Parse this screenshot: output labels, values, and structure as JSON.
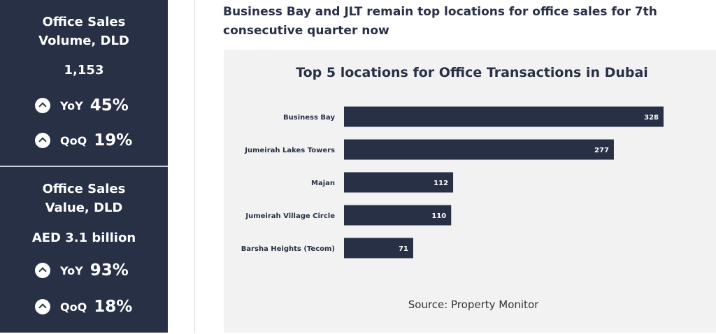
{
  "stats": [
    {
      "title_line1": "Office Sales",
      "title_line2": "Volume, DLD",
      "value": "1,153",
      "yoy_label": "YoY",
      "yoy_value": "45%",
      "qoq_label": "QoQ",
      "qoq_value": "19%",
      "icon": "chevron-up-circle-icon"
    },
    {
      "title_line1": "Office Sales",
      "title_line2": "Value, DLD",
      "value": "AED 3.1 billion",
      "yoy_label": "YoY",
      "yoy_value": "93%",
      "qoq_label": "QoQ",
      "qoq_value": "18%",
      "icon": "chevron-up-circle-icon"
    }
  ],
  "headline_line1": "Business Bay and JLT remain top locations for office sales for 7th",
  "headline_line2": "consecutive quarter now",
  "source": "Source: Property Monitor",
  "colors": {
    "panel": "#283046",
    "bar": "#283046",
    "chart_bg": "#f2f2f2"
  },
  "chart_data": {
    "type": "bar",
    "orientation": "horizontal",
    "title": "Top 5 locations for Office Transactions in Dubai",
    "categories": [
      "Business Bay",
      "Jumeirah Lakes Towers",
      "Majan",
      "Jumeirah Village Circle",
      "Barsha Heights (Tecom)"
    ],
    "values": [
      328,
      277,
      112,
      110,
      71
    ],
    "data_labels": [
      "328",
      "277",
      "112",
      "110",
      "71"
    ],
    "xlim": [
      0,
      328
    ],
    "grid": false,
    "legend": "none"
  }
}
